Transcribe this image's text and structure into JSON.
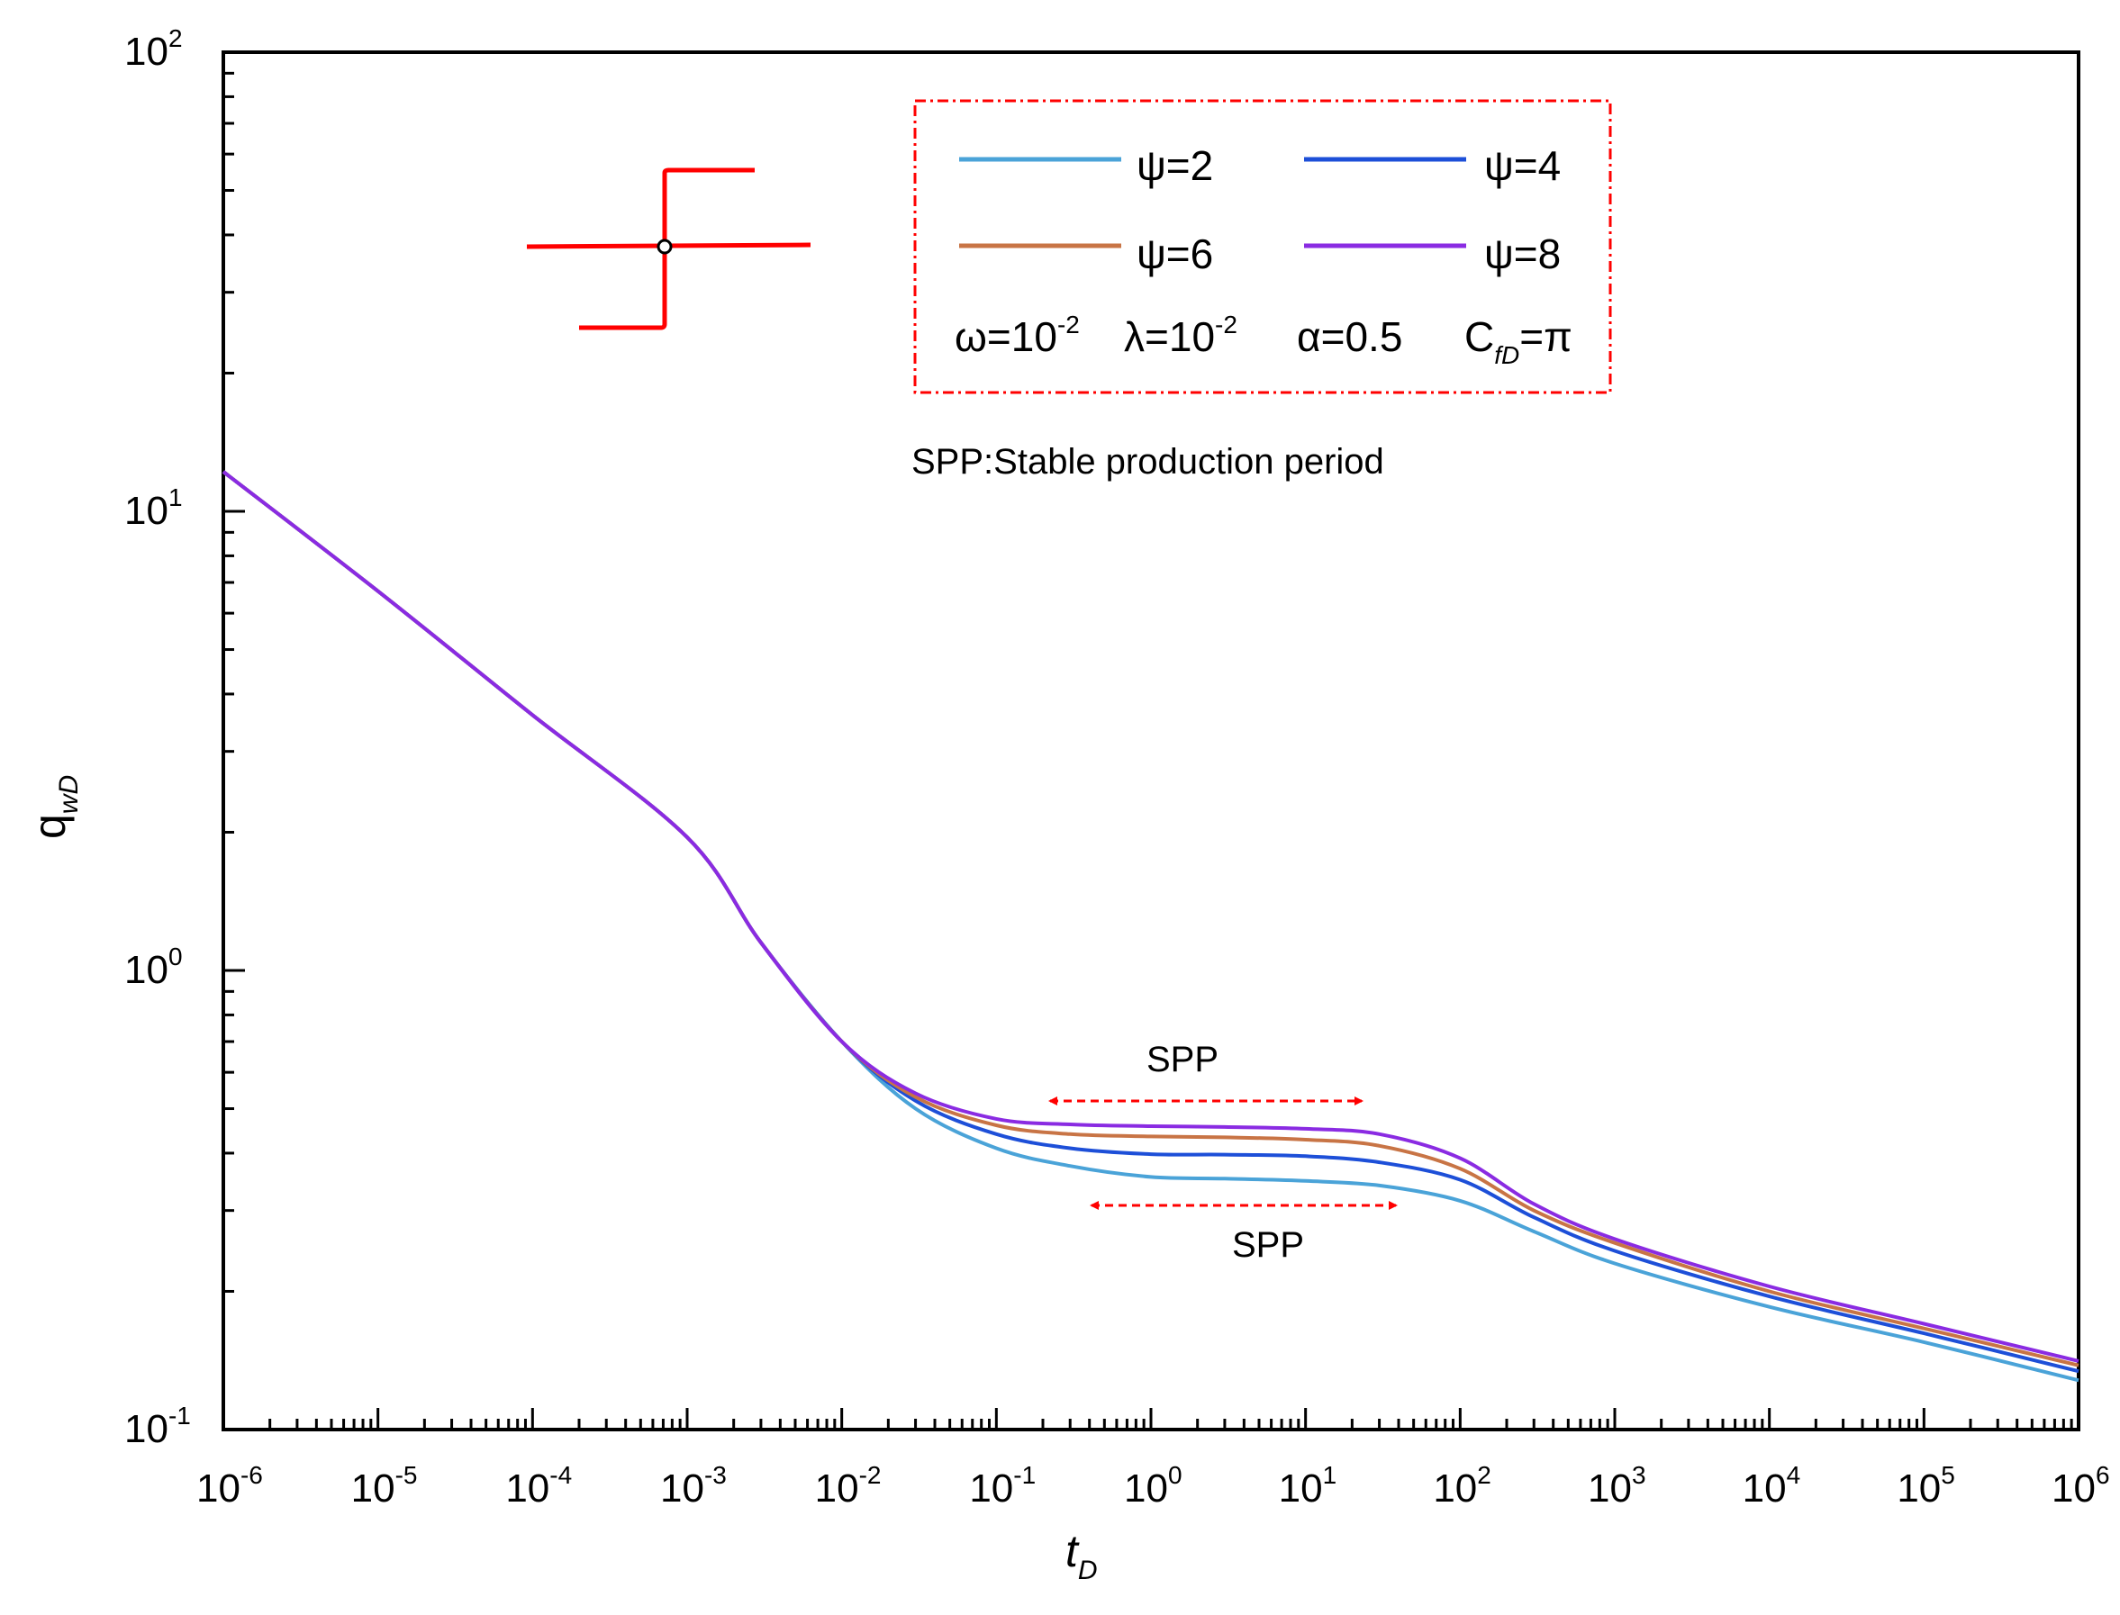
{
  "chart_data": {
    "type": "line",
    "xscale": "log",
    "yscale": "log",
    "xlim": [
      1e-06,
      1000000.0
    ],
    "ylim": [
      0.1,
      100
    ],
    "xlabel": "t",
    "xlabel_sub": "D",
    "ylabel": "q",
    "ylabel_sub": "wD",
    "x_ticks": [
      {
        "base": "10",
        "exp": "-6"
      },
      {
        "base": "10",
        "exp": "-5"
      },
      {
        "base": "10",
        "exp": "-4"
      },
      {
        "base": "10",
        "exp": "-3"
      },
      {
        "base": "10",
        "exp": "-2"
      },
      {
        "base": "10",
        "exp": "-1"
      },
      {
        "base": "10",
        "exp": "0"
      },
      {
        "base": "10",
        "exp": "1"
      },
      {
        "base": "10",
        "exp": "2"
      },
      {
        "base": "10",
        "exp": "3"
      },
      {
        "base": "10",
        "exp": "4"
      },
      {
        "base": "10",
        "exp": "5"
      },
      {
        "base": "10",
        "exp": "6"
      }
    ],
    "y_ticks": [
      {
        "base": "10",
        "exp": "-1"
      },
      {
        "base": "10",
        "exp": "0"
      },
      {
        "base": "10",
        "exp": "1"
      },
      {
        "base": "10",
        "exp": "2"
      }
    ],
    "series": [
      {
        "name": "ψ=2",
        "color": "#4aa3d8",
        "x": [
          1e-06,
          1e-05,
          0.0001,
          0.001,
          0.003,
          0.01,
          0.03,
          0.1,
          0.3,
          1,
          3,
          10,
          30,
          100,
          300,
          1000,
          10000.0,
          100000.0,
          1000000.0
        ],
        "y": [
          12.2,
          6.7,
          3.6,
          1.95,
          1.15,
          0.7,
          0.5,
          0.41,
          0.375,
          0.355,
          0.352,
          0.348,
          0.34,
          0.315,
          0.27,
          0.23,
          0.185,
          0.155,
          0.128
        ]
      },
      {
        "name": "ψ=4",
        "color": "#1d4fd8",
        "x": [
          1e-06,
          1e-05,
          0.0001,
          0.001,
          0.003,
          0.01,
          0.03,
          0.1,
          0.3,
          1,
          3,
          10,
          30,
          100,
          300,
          1000,
          10000.0,
          100000.0,
          1000000.0
        ],
        "y": [
          12.2,
          6.7,
          3.6,
          1.95,
          1.15,
          0.7,
          0.52,
          0.44,
          0.41,
          0.398,
          0.397,
          0.394,
          0.382,
          0.35,
          0.29,
          0.245,
          0.195,
          0.162,
          0.134
        ]
      },
      {
        "name": "ψ=6",
        "color": "#c87445",
        "x": [
          1e-06,
          1e-05,
          0.0001,
          0.001,
          0.003,
          0.01,
          0.03,
          0.1,
          0.3,
          1,
          3,
          10,
          30,
          100,
          300,
          1000,
          10000.0,
          100000.0,
          1000000.0
        ],
        "y": [
          12.2,
          6.7,
          3.6,
          1.95,
          1.15,
          0.7,
          0.53,
          0.46,
          0.44,
          0.435,
          0.433,
          0.428,
          0.415,
          0.37,
          0.3,
          0.255,
          0.2,
          0.166,
          0.138
        ]
      },
      {
        "name": "ψ=8",
        "color": "#8a2be2",
        "x": [
          1e-06,
          1e-05,
          0.0001,
          0.001,
          0.003,
          0.01,
          0.03,
          0.1,
          0.3,
          1,
          3,
          10,
          30,
          100,
          300,
          1000,
          10000.0,
          100000.0,
          1000000.0
        ],
        "y": [
          12.2,
          6.7,
          3.6,
          1.95,
          1.15,
          0.7,
          0.54,
          0.475,
          0.462,
          0.458,
          0.456,
          0.452,
          0.44,
          0.39,
          0.31,
          0.26,
          0.205,
          0.17,
          0.141
        ]
      }
    ],
    "legend": {
      "placement": "top-right",
      "params": [
        {
          "label": "ω=10",
          "sup": "-2"
        },
        {
          "label": "λ=10",
          "sup": "-2"
        },
        {
          "label": "α=0.5"
        },
        {
          "label": "C",
          "sub": "fD",
          "suffix": "=π"
        }
      ]
    },
    "annotations": [
      {
        "text": "SPP:Stable production period"
      },
      {
        "text": "SPP",
        "x_range": [
          0.3,
          20
        ],
        "y": 0.5
      },
      {
        "text": "SPP",
        "x_range": [
          0.5,
          30
        ],
        "y": 0.33
      }
    ]
  }
}
